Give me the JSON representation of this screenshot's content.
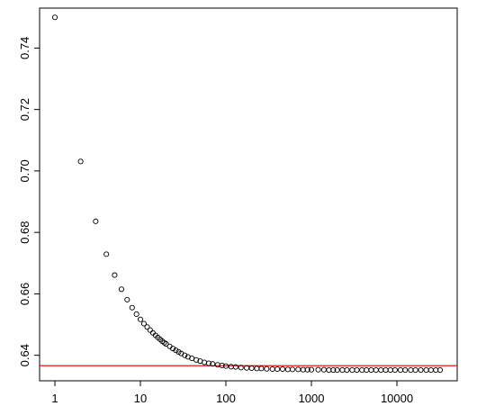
{
  "chart_data": {
    "type": "scatter",
    "title": "",
    "xlabel": "",
    "ylabel": "",
    "x_scale": "log",
    "xlim": [
      1,
      32768
    ],
    "ylim": [
      0.6317,
      0.753
    ],
    "x_ticks": [
      1,
      10,
      100,
      1000,
      10000
    ],
    "x_tick_labels": [
      "1",
      "10",
      "100",
      "1000",
      "10000"
    ],
    "y_ticks": [
      0.64,
      0.66,
      0.68,
      0.7,
      0.72,
      0.74
    ],
    "y_tick_labels": [
      "0.64",
      "0.66",
      "0.68",
      "0.70",
      "0.72",
      "0.74"
    ],
    "grid": false,
    "legend": "none",
    "marker": "open-circle",
    "point_color": "#000000",
    "reference_line": {
      "y": 0.6366,
      "color": "#e31a1c",
      "orientation": "horizontal"
    },
    "series": [
      {
        "values": {
          "x": [
            1,
            2,
            3,
            4,
            5,
            6,
            7,
            8,
            9,
            10,
            11,
            12,
            13,
            14,
            15,
            16,
            17,
            18,
            19,
            20,
            22,
            24,
            26,
            28,
            30,
            33,
            36,
            40,
            45,
            50,
            56,
            63,
            70,
            80,
            90,
            100,
            115,
            130,
            150,
            175,
            200,
            230,
            260,
            300,
            350,
            400,
            460,
            530,
            600,
            700,
            800,
            900,
            1000,
            1200,
            1400,
            1600,
            1800,
            2000,
            2300,
            2600,
            3000,
            3400,
            3900,
            4400,
            5000,
            5700,
            6500,
            7400,
            8400,
            9500,
            11000,
            12500,
            14500,
            16500,
            19000,
            22000,
            25000,
            28500,
            32000
          ],
          "y": [
            0.75,
            0.7031,
            0.6836,
            0.6729,
            0.6661,
            0.6615,
            0.6581,
            0.6555,
            0.6534,
            0.6517,
            0.6503,
            0.6492,
            0.6482,
            0.6473,
            0.6465,
            0.6458,
            0.6452,
            0.6446,
            0.6441,
            0.6437,
            0.6429,
            0.6422,
            0.6416,
            0.6411,
            0.6406,
            0.64,
            0.6395,
            0.639,
            0.6385,
            0.6381,
            0.6377,
            0.6374,
            0.6372,
            0.6369,
            0.6367,
            0.6365,
            0.6363,
            0.6362,
            0.636,
            0.6359,
            0.6358,
            0.6357,
            0.6357,
            0.6356,
            0.6355,
            0.6355,
            0.6355,
            0.6354,
            0.6354,
            0.6354,
            0.6353,
            0.6353,
            0.6353,
            0.6353,
            0.6353,
            0.6352,
            0.6352,
            0.6352,
            0.6352,
            0.6352,
            0.6352,
            0.6352,
            0.6352,
            0.6352,
            0.6352,
            0.6352,
            0.6352,
            0.6352,
            0.6352,
            0.6352,
            0.6352,
            0.6352,
            0.6352,
            0.6352,
            0.6352,
            0.6352,
            0.6352,
            0.6352,
            0.6352
          ]
        }
      }
    ]
  }
}
